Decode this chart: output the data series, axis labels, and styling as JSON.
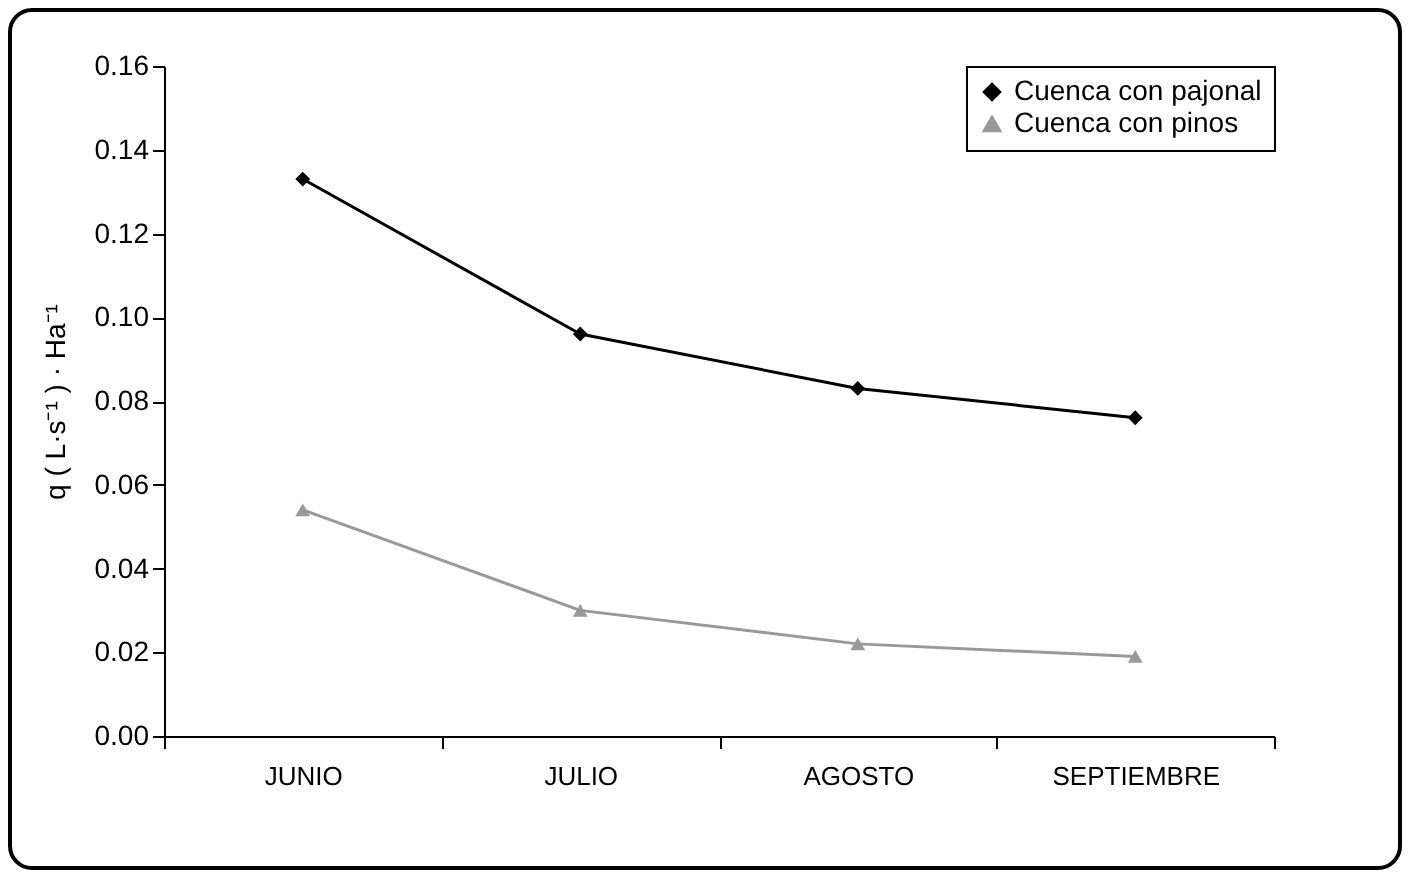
{
  "chart_data": {
    "type": "line",
    "ylabel": "q  ( L·s⁻¹ ) · Ha⁻¹",
    "categories": [
      "JUNIO",
      "JULIO",
      "AGOSTO",
      "SEPTIEMBRE"
    ],
    "series": [
      {
        "name": "Cuenca con pajonal",
        "color": "#000000",
        "marker": "diamond",
        "values": [
          0.133,
          0.096,
          0.083,
          0.076
        ]
      },
      {
        "name": "Cuenca con pinos",
        "color": "#999999",
        "marker": "triangle",
        "values": [
          0.054,
          0.03,
          0.022,
          0.019
        ]
      }
    ],
    "ylim": [
      0,
      0.16
    ],
    "yticks": [
      {
        "value": 0,
        "label": "0.00"
      },
      0.02,
      0.04,
      0.06,
      0.08,
      {
        "value": 0.1,
        "label": "0.10"
      },
      0.12,
      0.14,
      0.16
    ],
    "grid": false,
    "legend": "top right",
    "line_style": "solid"
  }
}
